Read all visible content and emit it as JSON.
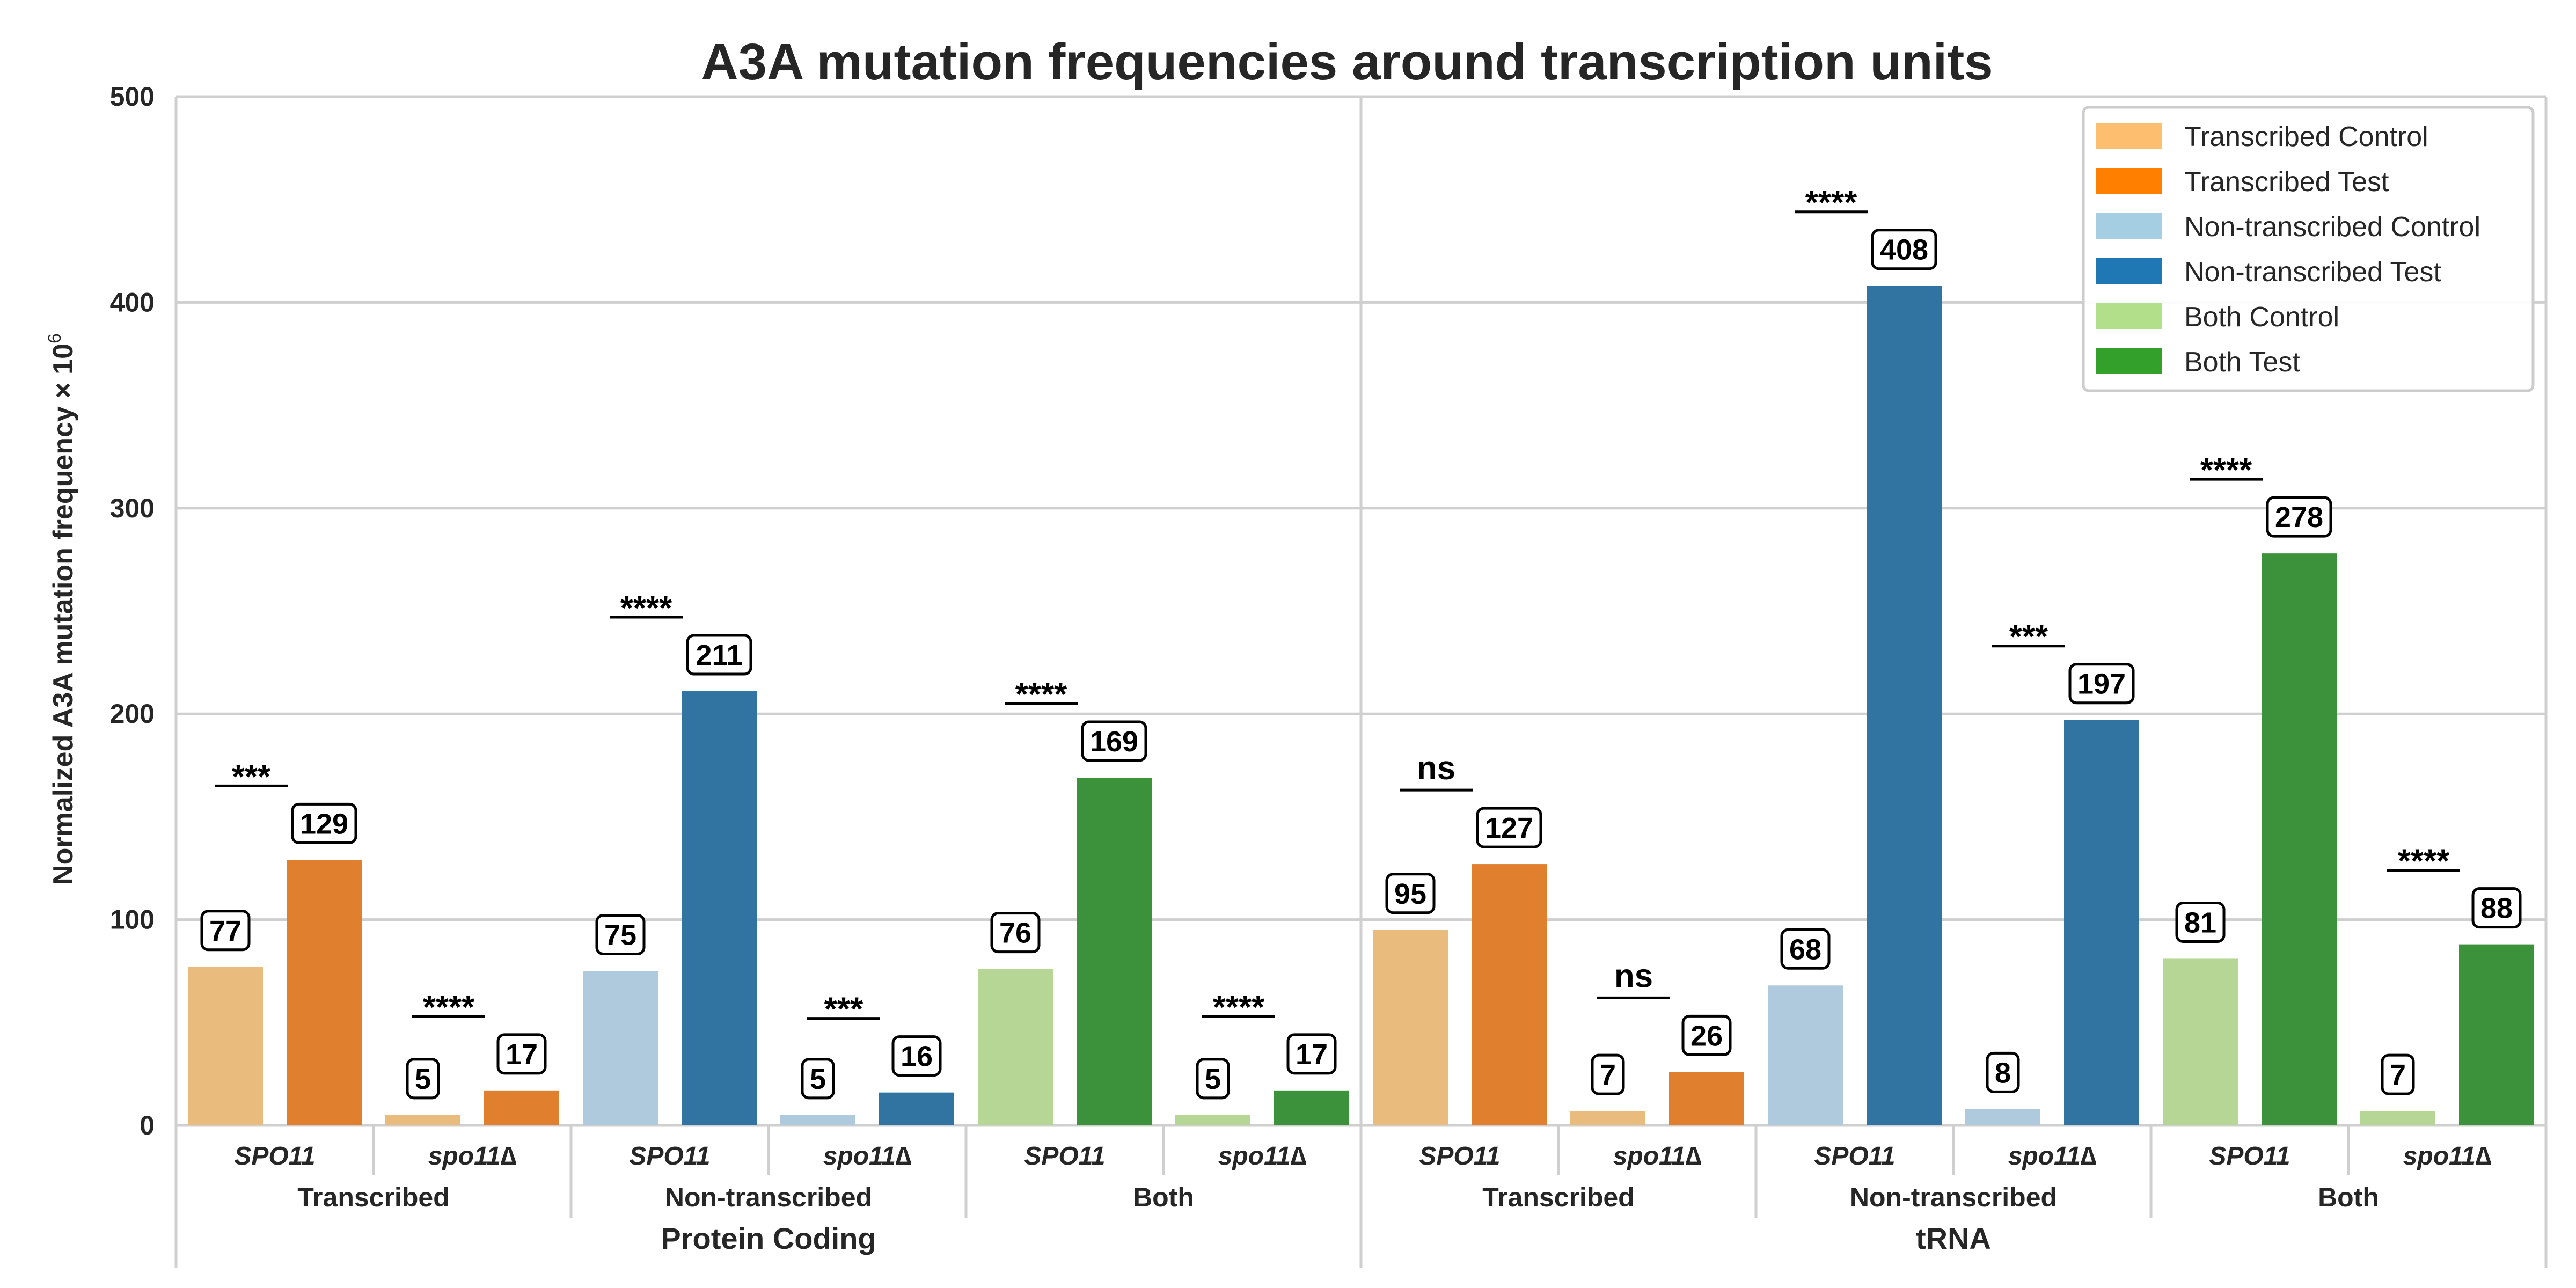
{
  "chart_data": {
    "type": "bar",
    "title": "A3A mutation frequencies around transcription units",
    "ylabel": "Normalized A3A mutation frequency × 10",
    "ylabel_superscript": "6",
    "ylim": [
      0,
      500
    ],
    "yticks": [
      "0",
      "100",
      "200",
      "300",
      "400",
      "500"
    ],
    "grid": true,
    "legend_position": "top-right",
    "legend": [
      {
        "name": "Transcribed Control",
        "color": "#fdbf6f"
      },
      {
        "name": "Transcribed Test",
        "color": "#ff7f00"
      },
      {
        "name": "Non-transcribed Control",
        "color": "#a6cee3"
      },
      {
        "name": "Non-transcribed Test",
        "color": "#1f78b4"
      },
      {
        "name": "Both Control",
        "color": "#b2df8a"
      },
      {
        "name": "Both Test",
        "color": "#33a02c"
      }
    ],
    "genotypes": [
      "SPO11",
      "spo11∆"
    ],
    "categories": [
      "Protein Coding",
      "tRNA"
    ],
    "groups": [
      {
        "category": "Protein Coding",
        "region": "Transcribed",
        "genotypes": [
          {
            "genotype": "SPO11",
            "control": 77,
            "test": 129,
            "control_label": "77",
            "test_label": "129",
            "significance": "***"
          },
          {
            "genotype": "spo11∆",
            "control": 5,
            "test": 17,
            "control_label": "5",
            "test_label": "17",
            "significance": "****"
          }
        ]
      },
      {
        "category": "Protein Coding",
        "region": "Non-transcribed",
        "genotypes": [
          {
            "genotype": "SPO11",
            "control": 75,
            "test": 211,
            "control_label": "75",
            "test_label": "211",
            "significance": "****"
          },
          {
            "genotype": "spo11∆",
            "control": 5,
            "test": 16,
            "control_label": "5",
            "test_label": "16",
            "significance": "***"
          }
        ]
      },
      {
        "category": "Protein Coding",
        "region": "Both",
        "genotypes": [
          {
            "genotype": "SPO11",
            "control": 76,
            "test": 169,
            "control_label": "76",
            "test_label": "169",
            "significance": "****"
          },
          {
            "genotype": "spo11∆",
            "control": 5,
            "test": 17,
            "control_label": "5",
            "test_label": "17",
            "significance": "****"
          }
        ]
      },
      {
        "category": "tRNA",
        "region": "Transcribed",
        "genotypes": [
          {
            "genotype": "SPO11",
            "control": 95,
            "test": 127,
            "control_label": "95",
            "test_label": "127",
            "significance": "ns"
          },
          {
            "genotype": "spo11∆",
            "control": 7,
            "test": 26,
            "control_label": "7",
            "test_label": "26",
            "significance": "ns"
          }
        ]
      },
      {
        "category": "tRNA",
        "region": "Non-transcribed",
        "genotypes": [
          {
            "genotype": "SPO11",
            "control": 68,
            "test": 408,
            "control_label": "68",
            "test_label": "408",
            "significance": "****"
          },
          {
            "genotype": "spo11∆",
            "control": 8,
            "test": 197,
            "control_label": "8",
            "test_label": "197",
            "significance": "***"
          }
        ]
      },
      {
        "category": "tRNA",
        "region": "Both",
        "genotypes": [
          {
            "genotype": "SPO11",
            "control": 81,
            "test": 278,
            "control_label": "81",
            "test_label": "278",
            "significance": "****"
          },
          {
            "genotype": "spo11∆",
            "control": 7,
            "test": 88,
            "control_label": "7",
            "test_label": "88",
            "significance": "****"
          }
        ]
      }
    ]
  },
  "colors": {
    "Transcribed": {
      "control": "#e9bb7c",
      "test": "#e0802e"
    },
    "Non-transcribed": {
      "control": "#aecadc",
      "test": "#3274a1"
    },
    "Both": {
      "control": "#b5d694",
      "test": "#3b923b"
    },
    "grid": "#cfcfcf",
    "text": "#262626"
  }
}
